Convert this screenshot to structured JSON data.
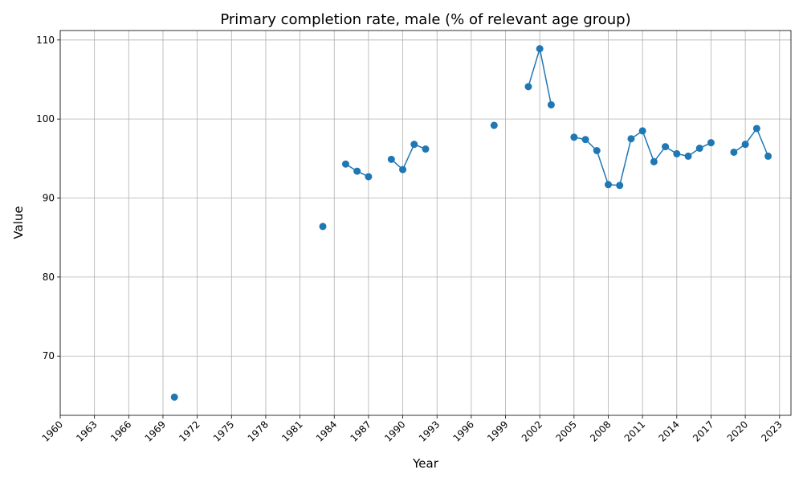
{
  "chart_data": {
    "type": "line",
    "title": "Primary completion rate, male (% of relevant age group)",
    "xlabel": "Year",
    "ylabel": "Value",
    "xlim": [
      1960,
      2024
    ],
    "ylim": [
      62.5,
      111.2
    ],
    "xticks": [
      1960,
      1963,
      1966,
      1969,
      1972,
      1975,
      1978,
      1981,
      1984,
      1987,
      1990,
      1993,
      1996,
      1999,
      2002,
      2005,
      2008,
      2011,
      2014,
      2017,
      2020,
      2023
    ],
    "yticks": [
      70,
      80,
      90,
      100,
      110
    ],
    "grid": true,
    "series": [
      {
        "color": "#1f77b4",
        "points": [
          {
            "x": 1970,
            "y": 64.8
          },
          {
            "x": 1983,
            "y": 86.4
          },
          {
            "x": 1985,
            "y": 94.3
          },
          {
            "x": 1986,
            "y": 93.4
          },
          {
            "x": 1987,
            "y": 92.7
          },
          {
            "x": 1989,
            "y": 94.9
          },
          {
            "x": 1990,
            "y": 93.6
          },
          {
            "x": 1991,
            "y": 96.8
          },
          {
            "x": 1992,
            "y": 96.2
          },
          {
            "x": 1998,
            "y": 99.2
          },
          {
            "x": 2001,
            "y": 104.1
          },
          {
            "x": 2002,
            "y": 108.9
          },
          {
            "x": 2003,
            "y": 101.8
          },
          {
            "x": 2005,
            "y": 97.7
          },
          {
            "x": 2006,
            "y": 97.4
          },
          {
            "x": 2007,
            "y": 96.0
          },
          {
            "x": 2008,
            "y": 91.7
          },
          {
            "x": 2009,
            "y": 91.6
          },
          {
            "x": 2010,
            "y": 97.5
          },
          {
            "x": 2011,
            "y": 98.5
          },
          {
            "x": 2012,
            "y": 94.6
          },
          {
            "x": 2013,
            "y": 96.5
          },
          {
            "x": 2014,
            "y": 95.6
          },
          {
            "x": 2015,
            "y": 95.3
          },
          {
            "x": 2016,
            "y": 96.3
          },
          {
            "x": 2017,
            "y": 97.0
          },
          {
            "x": 2019,
            "y": 95.8
          },
          {
            "x": 2020,
            "y": 96.8
          },
          {
            "x": 2021,
            "y": 98.8
          },
          {
            "x": 2022,
            "y": 95.3
          }
        ]
      }
    ]
  }
}
